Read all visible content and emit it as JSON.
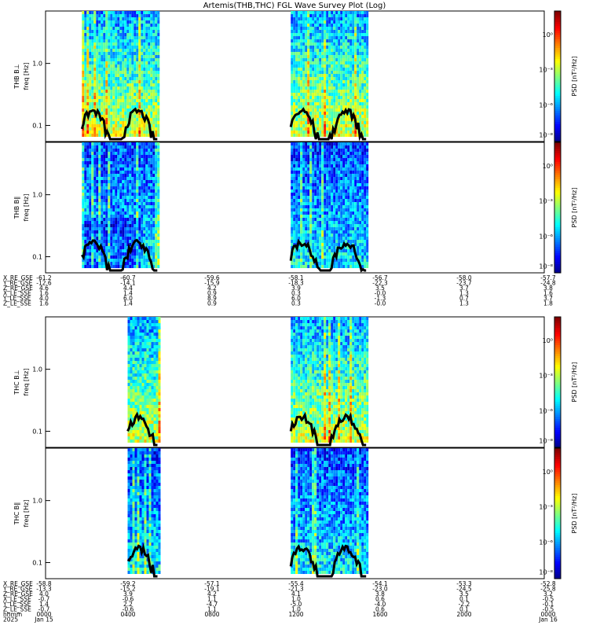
{
  "chart_data": {
    "type": "heatmap",
    "title": "Artemis(THB,THC) FGL Wave Survey Plot (Log)",
    "colorbar_label": "PSD [nT²/Hz]",
    "colorbar_ticks": [
      "10⁰",
      "10⁻³",
      "10⁻⁶",
      "10⁻⁸"
    ],
    "yticks": [
      "1.0",
      "0.1"
    ],
    "yscale": "log",
    "panels": [
      {
        "label": "THB B⊥",
        "ylabel": "freq [Hz]",
        "segments": [
          [
            1.75,
            5.45
          ],
          [
            11.8,
            15.5
          ]
        ],
        "style": "bright"
      },
      {
        "label": "THB B∥",
        "ylabel": "freq [Hz]",
        "segments": [
          [
            1.75,
            5.45
          ],
          [
            11.8,
            15.5
          ]
        ],
        "style": "dark"
      },
      {
        "label": "THC B⊥",
        "ylabel": "freq [Hz]",
        "segments": [
          [
            3.95,
            5.45
          ],
          [
            11.8,
            15.5
          ]
        ],
        "style": "bright"
      },
      {
        "label": "THC B∥",
        "ylabel": "freq [Hz]",
        "segments": [
          [
            3.95,
            5.45
          ],
          [
            11.8,
            15.5
          ]
        ],
        "style": "dark"
      }
    ],
    "ephem_top": {
      "labels": [
        "X_RE_GSE",
        "Y_RE_GSE",
        "Z_RE_GSE",
        "X_LE_SSE",
        "Y_LE_SSE",
        "Z_LE_SSE"
      ],
      "columns": [
        [
          "-61.2",
          "-12.6",
          "4.6",
          "1.6",
          "4.0",
          "1.6"
        ],
        [
          "-60.7",
          "-14.1",
          "4.4",
          "1.4",
          "6.0",
          "1.4"
        ],
        [
          "-59.6",
          "-15.9",
          "4.2",
          "0.9",
          "8.9",
          "0.9"
        ],
        [
          "-58.1",
          "-18.3",
          "3.9",
          "0.3",
          "6.0",
          "0.3"
        ],
        [
          "-56.7",
          "-22.3",
          "3.5",
          "-0.0",
          "-1.3",
          "-0.0"
        ],
        [
          "-58.0",
          "-23.7",
          "3.7",
          "1.3",
          "0.7",
          "1.3"
        ],
        [
          "-57.7",
          "-24.8",
          "3.8",
          "1.6",
          "3.7",
          "1.8"
        ]
      ]
    },
    "ephem_bottom": {
      "labels": [
        "X_RE_GSE",
        "Y_RE_GSE",
        "Z_RE_GSE",
        "X_LE_SSE",
        "Y_LE_SSE",
        "Z_LE_SSE",
        "hhmm",
        "2025"
      ],
      "columns": [
        [
          "-58.8",
          "-13.3",
          "4.0",
          "-0.7",
          "1.4",
          "-0.7",
          "0000",
          "Jan 15"
        ],
        [
          "-59.2",
          "-15.2",
          "3.9",
          "-0.6",
          "2.2",
          "-0.6",
          "0400",
          ""
        ],
        [
          "-57.1",
          "-19.1",
          "4.2",
          "1.1",
          "-4.7",
          "1.1",
          "0800",
          ""
        ],
        [
          "-55.4",
          "-21.3",
          "4.1",
          "1.0",
          "-5.0",
          "1.0",
          "1200",
          ""
        ],
        [
          "-54.1",
          "-23.0",
          "3.8",
          "0.6",
          "-4.0",
          "0.6",
          "1600",
          ""
        ],
        [
          "-53.3",
          "-24.5",
          "3.5",
          "0.1",
          "-2.2",
          "0.1",
          "2000",
          ""
        ],
        [
          "-52.8",
          "-25.8",
          "3.2",
          "-0.5",
          "-0.1",
          "-0.5",
          "0000",
          "Jan 16"
        ]
      ]
    }
  }
}
